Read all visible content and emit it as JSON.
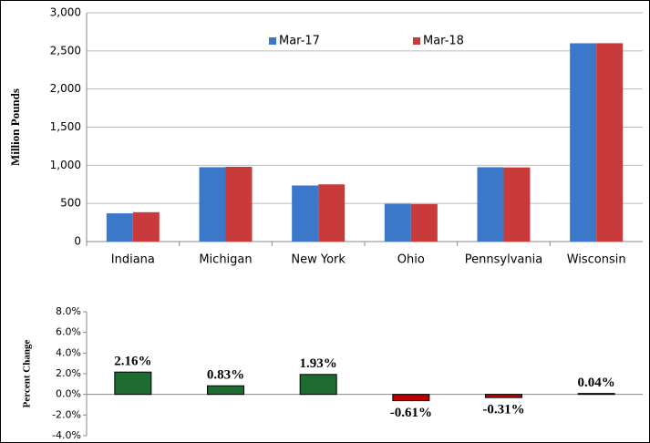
{
  "chart_data": [
    {
      "type": "bar",
      "y_label": "Million Pounds",
      "categories": [
        "Indiana",
        "Michigan",
        "New York",
        "Ohio",
        "Pennsylvania",
        "Wisconsin"
      ],
      "series": [
        {
          "name": "Mar-17",
          "color": "#3b78c9",
          "values": [
            370,
            975,
            735,
            495,
            975,
            2600
          ]
        },
        {
          "name": "Mar-18",
          "color": "#c93b3b",
          "values": [
            385,
            980,
            750,
            492,
            972,
            2601
          ]
        }
      ],
      "ylim": [
        0,
        3000
      ],
      "yticks": [
        0,
        500,
        {
          "value": 1000,
          "label": "1,000"
        },
        {
          "value": 1500,
          "label": "1,500"
        },
        {
          "value": 2000,
          "label": "2,000"
        },
        {
          "value": 2500,
          "label": "2,500"
        },
        {
          "value": 3000,
          "label": "3,000"
        }
      ],
      "grid": true,
      "legend": "top"
    },
    {
      "type": "bar",
      "y_label": "Percent Change",
      "values": [
        2.16,
        0.83,
        1.93,
        -0.61,
        -0.31,
        0.04
      ],
      "value_labels": [
        "2.16%",
        "0.83%",
        "1.93%",
        "-0.61%",
        "-0.31%",
        "0.04%"
      ],
      "positive_color": "#1e6b32",
      "negative_color": "#c00000",
      "ylim": [
        -4,
        8
      ],
      "yticks": [
        {
          "value": -4,
          "label": "-4.0%"
        },
        {
          "value": -2,
          "label": "-2.0%"
        },
        {
          "value": 0,
          "label": "0.0%"
        },
        {
          "value": 2,
          "label": "2.0%"
        },
        {
          "value": 4,
          "label": "4.0%"
        },
        {
          "value": 6,
          "label": "6.0%"
        },
        {
          "value": 8,
          "label": "8.0%"
        }
      ],
      "grid": false
    }
  ]
}
